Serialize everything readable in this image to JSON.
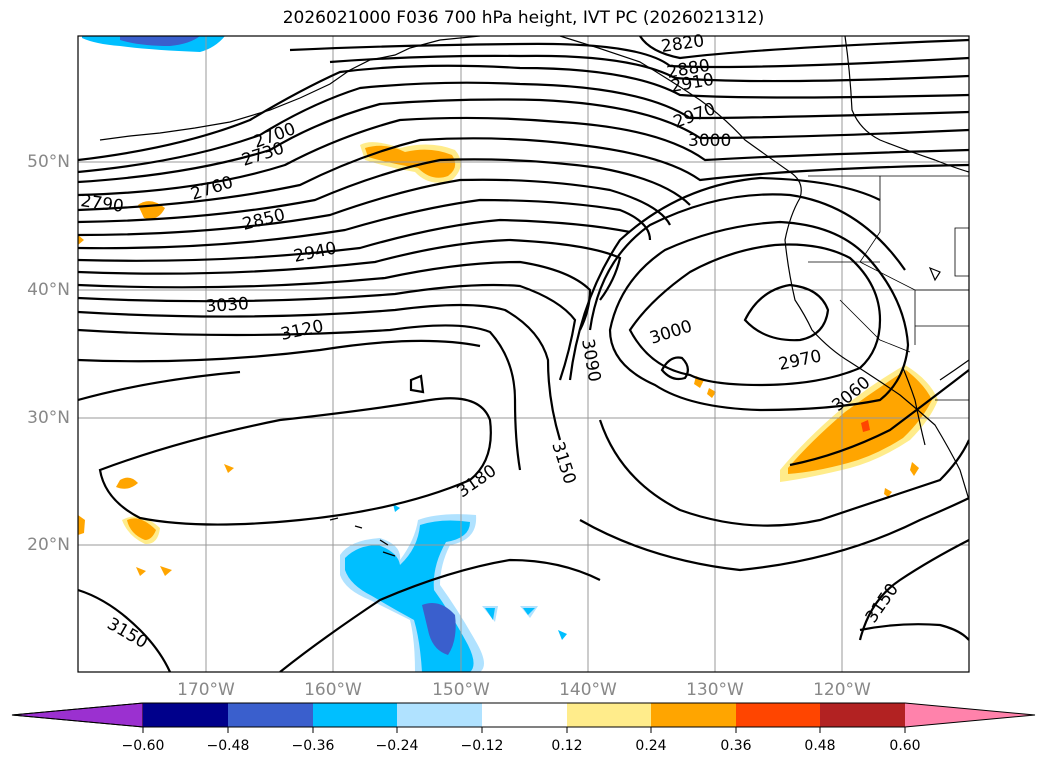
{
  "title": "2026021000 F036 700 hPa height, IVT PC (2026021312)",
  "lat_labels": [
    "50°N",
    "40°N",
    "30°N",
    "20°N"
  ],
  "lon_labels": [
    "170°W",
    "160°W",
    "150°W",
    "140°W",
    "130°W",
    "120°W"
  ],
  "contour_labels": [
    "2820",
    "2880",
    "2910",
    "2970",
    "3000",
    "2700",
    "2730",
    "2760",
    "2790",
    "2850",
    "2940",
    "3030",
    "3120",
    "3090",
    "3000",
    "2970",
    "3060",
    "3180",
    "3150",
    "3150",
    "3150"
  ],
  "colorbar": {
    "ticks": [
      "−0.60",
      "−0.48",
      "−0.36",
      "−0.24",
      "−0.12",
      "0.12",
      "0.24",
      "0.36",
      "0.48",
      "0.60"
    ],
    "colors": [
      "#9b30d0",
      "#00008b",
      "#3a5fcd",
      "#00bfff",
      "#b0e2ff",
      "#ffffff",
      "#ffec8b",
      "#ffa500",
      "#ff4500",
      "#b22222",
      "#ff82ab",
      "#ff82ab"
    ]
  },
  "colors": {
    "contour": "#000000",
    "grid": "#999999",
    "label": "#888888"
  }
}
